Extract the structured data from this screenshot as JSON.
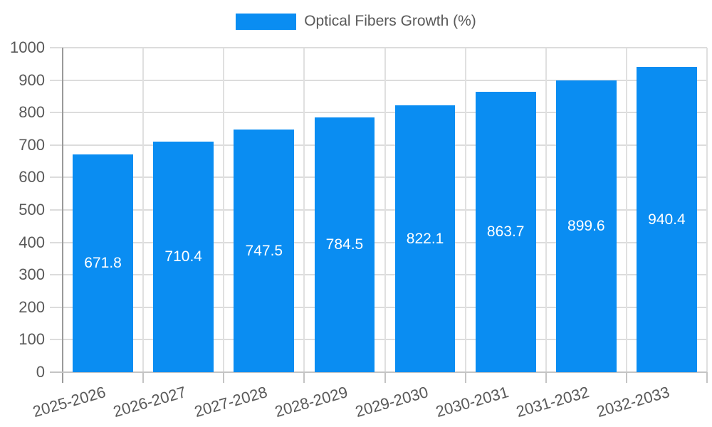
{
  "chart_data": {
    "type": "bar",
    "title": "",
    "xlabel": "",
    "ylabel": "",
    "categories": [
      "2025-2026",
      "2026-2027",
      "2027-2028",
      "2028-2029",
      "2029-2030",
      "2030-2031",
      "2031-2032",
      "2032-2033"
    ],
    "series": [
      {
        "name": "Optical Fibers Growth (%)",
        "color": "#0a8df2",
        "values": [
          671.8,
          710.4,
          747.5,
          784.5,
          822.1,
          863.7,
          899.6,
          940.4
        ]
      }
    ],
    "ylim": [
      0,
      1000
    ],
    "ytick_step": 100,
    "ytick_labels": [
      "0",
      "100",
      "200",
      "300",
      "400",
      "500",
      "600",
      "700",
      "800",
      "900",
      "1000"
    ],
    "grid": true,
    "legend_position": "top",
    "bar_value_label_color": "#ffffff",
    "axis_text_color": "#595959",
    "gridline_color": "#dcdcdc",
    "x_label_rotation_deg": -16
  }
}
